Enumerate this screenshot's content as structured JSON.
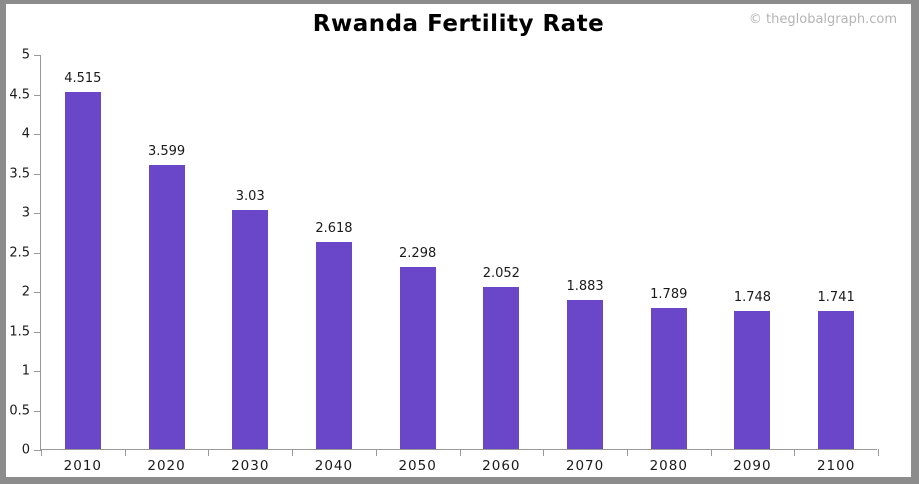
{
  "header": {
    "title": "Rwanda Fertility Rate",
    "watermark": "© theglobalgraph.com"
  },
  "colors": {
    "bar": "#6a47c9",
    "axis": "#9a9a9a",
    "frame": "#8c8c8c",
    "title": "#000000",
    "watermark": "#b4b4b4",
    "label": "#1a1a1a"
  },
  "chart_data": {
    "type": "bar",
    "title": "Rwanda Fertility Rate",
    "xlabel": "",
    "ylabel": "",
    "categories": [
      "2010",
      "2020",
      "2030",
      "2040",
      "2050",
      "2060",
      "2070",
      "2080",
      "2090",
      "2100"
    ],
    "values": [
      4.515,
      3.599,
      3.03,
      2.618,
      2.298,
      2.052,
      1.883,
      1.789,
      1.748,
      1.741
    ],
    "value_labels": [
      "4.515",
      "3.599",
      "3.03",
      "2.618",
      "2.298",
      "2.052",
      "1.883",
      "1.789",
      "1.748",
      "1.741"
    ],
    "ylim": [
      0,
      5
    ],
    "ytick_step": 0.5,
    "yticks": [
      "5",
      "4.5",
      "4",
      "3.5",
      "3",
      "2.5",
      "2",
      "1.5",
      "1",
      "0.5",
      "0"
    ],
    "grid": false,
    "legend": null,
    "bar_color": "#6a47c9"
  }
}
